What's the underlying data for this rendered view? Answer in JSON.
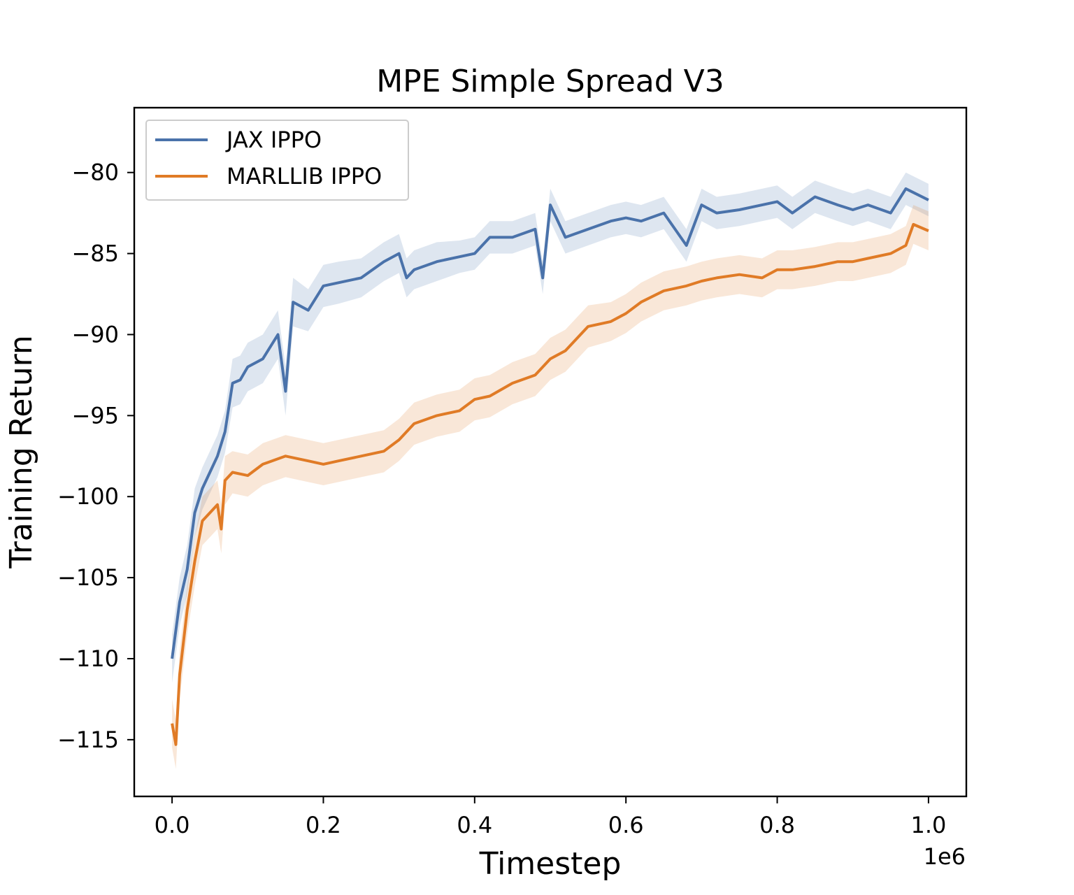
{
  "chart_data": {
    "type": "line",
    "title": "MPE Simple Spread V3",
    "xlabel": "Timestep",
    "ylabel": "Training Return",
    "x_offset_label": "1e6",
    "xlim": [
      -0.05,
      1.05
    ],
    "ylim": [
      -118.5,
      -76
    ],
    "x_ticks": [
      0.0,
      0.2,
      0.4,
      0.6,
      0.8,
      1.0
    ],
    "x_tick_labels": [
      "0.0",
      "0.2",
      "0.4",
      "0.6",
      "0.8",
      "1.0"
    ],
    "y_ticks": [
      -80,
      -85,
      -90,
      -95,
      -100,
      -105,
      -110,
      -115
    ],
    "y_tick_labels": [
      "−80",
      "−85",
      "−90",
      "−95",
      "−100",
      "−105",
      "−110",
      "−115"
    ],
    "grid": false,
    "legend_position": "top-left",
    "series": [
      {
        "name": "JAX IPPO",
        "color": "#4a72aa",
        "x": [
          0.0,
          0.01,
          0.02,
          0.03,
          0.04,
          0.05,
          0.06,
          0.07,
          0.08,
          0.09,
          0.1,
          0.12,
          0.14,
          0.15,
          0.16,
          0.18,
          0.2,
          0.22,
          0.25,
          0.28,
          0.3,
          0.31,
          0.32,
          0.35,
          0.38,
          0.4,
          0.42,
          0.45,
          0.48,
          0.49,
          0.5,
          0.52,
          0.55,
          0.58,
          0.6,
          0.62,
          0.65,
          0.68,
          0.7,
          0.72,
          0.75,
          0.78,
          0.8,
          0.82,
          0.85,
          0.88,
          0.9,
          0.92,
          0.95,
          0.97,
          1.0
        ],
        "y": [
          -110,
          -106.5,
          -104.5,
          -101,
          -99.5,
          -98.5,
          -97.5,
          -96,
          -93,
          -92.8,
          -92,
          -91.5,
          -90,
          -93.5,
          -88,
          -88.5,
          -87,
          -86.8,
          -86.5,
          -85.5,
          -85,
          -86.5,
          -86,
          -85.5,
          -85.2,
          -85,
          -84,
          -84,
          -83.5,
          -86.5,
          -82,
          -84,
          -83.5,
          -83,
          -82.8,
          -83,
          -82.5,
          -84.5,
          -82,
          -82.5,
          -82.3,
          -82,
          -81.8,
          -82.5,
          -81.5,
          -82,
          -82.3,
          -82,
          -82.5,
          -81,
          -81.7
        ],
        "band": [
          1.5,
          1.5,
          1.5,
          1.5,
          1.3,
          1.3,
          1.3,
          1.3,
          1.5,
          1.5,
          1.5,
          1.5,
          1.5,
          1.5,
          1.5,
          1.3,
          1.3,
          1.3,
          1.2,
          1.2,
          1.2,
          1.2,
          1.2,
          1.2,
          1.0,
          1.0,
          1.0,
          1.0,
          1.0,
          1.0,
          1.0,
          1.0,
          1.0,
          1.0,
          1.0,
          1.0,
          1.0,
          1.0,
          1.0,
          1.0,
          1.0,
          1.0,
          1.0,
          1.0,
          1.0,
          1.0,
          1.0,
          1.0,
          1.0,
          1.0,
          1.0
        ]
      },
      {
        "name": "MARLLIB IPPO",
        "color": "#e07b26",
        "x": [
          0.0,
          0.005,
          0.01,
          0.02,
          0.03,
          0.04,
          0.05,
          0.06,
          0.065,
          0.07,
          0.08,
          0.1,
          0.12,
          0.15,
          0.18,
          0.2,
          0.22,
          0.25,
          0.28,
          0.3,
          0.32,
          0.35,
          0.38,
          0.4,
          0.42,
          0.45,
          0.48,
          0.5,
          0.52,
          0.55,
          0.58,
          0.6,
          0.62,
          0.65,
          0.68,
          0.7,
          0.72,
          0.75,
          0.78,
          0.8,
          0.82,
          0.85,
          0.88,
          0.9,
          0.92,
          0.95,
          0.97,
          0.98,
          1.0
        ],
        "y": [
          -114,
          -115.3,
          -111,
          -107,
          -104,
          -101.5,
          -101,
          -100.5,
          -102,
          -99,
          -98.5,
          -98.7,
          -98,
          -97.5,
          -97.8,
          -98,
          -97.8,
          -97.5,
          -97.2,
          -96.5,
          -95.5,
          -95,
          -94.7,
          -94,
          -93.8,
          -93,
          -92.5,
          -91.5,
          -91,
          -89.5,
          -89.2,
          -88.7,
          -88,
          -87.3,
          -87,
          -86.7,
          -86.5,
          -86.3,
          -86.5,
          -86,
          -86,
          -85.8,
          -85.5,
          -85.5,
          -85.3,
          -85,
          -84.5,
          -83.2,
          -83.6
        ],
        "band": [
          1.5,
          1.5,
          1.5,
          1.5,
          1.5,
          1.5,
          1.5,
          1.5,
          1.5,
          1.5,
          1.3,
          1.3,
          1.3,
          1.3,
          1.3,
          1.3,
          1.3,
          1.3,
          1.3,
          1.3,
          1.3,
          1.3,
          1.3,
          1.3,
          1.3,
          1.3,
          1.3,
          1.3,
          1.3,
          1.3,
          1.2,
          1.2,
          1.2,
          1.2,
          1.2,
          1.2,
          1.2,
          1.2,
          1.2,
          1.2,
          1.2,
          1.2,
          1.2,
          1.2,
          1.2,
          1.2,
          1.2,
          1.2,
          1.2
        ]
      }
    ]
  }
}
